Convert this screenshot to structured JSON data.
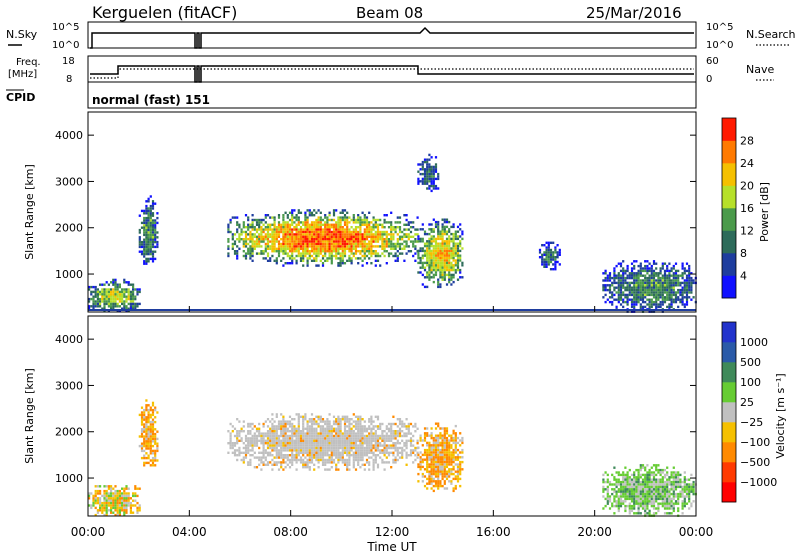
{
  "header": {
    "station": "Kerguelen (fitACF)",
    "beam": "Beam 08",
    "date": "25/Mar/2016"
  },
  "noise_panel": {
    "left_label": "N.Sky",
    "right_label": "N.Search",
    "y_ticks_left": [
      "10^5",
      "10^0"
    ],
    "y_ticks_right": [
      "10^5",
      "10^0"
    ]
  },
  "freq_panel": {
    "left_label_1": "Freq.",
    "left_label_2": "[MHz]",
    "right_label": "Nave",
    "y_ticks_left": [
      "18",
      "8"
    ],
    "y_ticks_right": [
      "60",
      "0"
    ]
  },
  "cpid": {
    "label": "CPID",
    "mode_text": "normal (fast) 151"
  },
  "x_axis": {
    "ticks": [
      "00:00",
      "04:00",
      "08:00",
      "12:00",
      "16:00",
      "20:00",
      "00:00"
    ],
    "label": "Time UT"
  },
  "chart_data": [
    {
      "type": "heatmap",
      "title": "",
      "xlabel": "Time UT",
      "ylabel": "Slant Range [km]",
      "x_range_hours": [
        0,
        24
      ],
      "ylim": [
        180,
        4500
      ],
      "y_ticks": [
        "1000",
        "2000",
        "3000",
        "4000"
      ],
      "colorbar": {
        "label": "Power [dB]",
        "ticks": [
          "28",
          "24",
          "20",
          "16",
          "12",
          "8",
          "4"
        ],
        "range": [
          0,
          32
        ],
        "colors": [
          "#1010ff",
          "#1e3d9e",
          "#2d6b5a",
          "#4a9a4a",
          "#b6e02a",
          "#f5c000",
          "#ff7a00",
          "#ff1a00"
        ]
      },
      "echo_regions": [
        {
          "t0": 0.0,
          "t1": 2.0,
          "r_top": 900,
          "r_bot": 180,
          "level": 0.6
        },
        {
          "t0": 2.0,
          "t1": 2.7,
          "r_top": 2700,
          "r_bot": 1200,
          "level": 0.4
        },
        {
          "t0": 5.5,
          "t1": 13.0,
          "r_top": 2400,
          "r_bot": 1200,
          "level": 0.85
        },
        {
          "t0": 13.0,
          "t1": 14.8,
          "r_top": 2200,
          "r_bot": 700,
          "level": 0.7
        },
        {
          "t0": 13.0,
          "t1": 13.8,
          "r_top": 3600,
          "r_bot": 2800,
          "level": 0.3
        },
        {
          "t0": 17.8,
          "t1": 18.6,
          "r_top": 1700,
          "r_bot": 1100,
          "level": 0.3
        },
        {
          "t0": 20.3,
          "t1": 24.0,
          "r_top": 1300,
          "r_bot": 180,
          "level": 0.4
        }
      ]
    },
    {
      "type": "heatmap",
      "title": "",
      "xlabel": "Time UT",
      "ylabel": "Slant Range [km]",
      "x_range_hours": [
        0,
        24
      ],
      "ylim": [
        180,
        4500
      ],
      "y_ticks": [
        "1000",
        "2000",
        "3000",
        "4000"
      ],
      "colorbar": {
        "label": "Velocity [m s⁻¹]",
        "ticks": [
          "1000",
          "500",
          "100",
          "25",
          "−25",
          "−100",
          "−500",
          "−1000"
        ],
        "colors": [
          "#2233cc",
          "#2a5aa8",
          "#3f8a5a",
          "#66cc33",
          "#c0c0c0",
          "#f5c000",
          "#ff8a00",
          "#ff3a00",
          "#ff0000"
        ]
      },
      "echo_regions": [
        {
          "t0": 0.0,
          "t1": 2.0,
          "r_top": 900,
          "r_bot": 180,
          "flow": "mixed"
        },
        {
          "t0": 2.0,
          "t1": 2.7,
          "r_top": 2700,
          "r_bot": 1200,
          "flow": "away"
        },
        {
          "t0": 5.5,
          "t1": 13.0,
          "r_top": 2400,
          "r_bot": 1200,
          "flow": "ground"
        },
        {
          "t0": 13.0,
          "t1": 14.8,
          "r_top": 2200,
          "r_bot": 700,
          "flow": "away"
        },
        {
          "t0": 20.3,
          "t1": 24.0,
          "r_top": 1300,
          "r_bot": 180,
          "flow": "toward"
        }
      ]
    }
  ]
}
